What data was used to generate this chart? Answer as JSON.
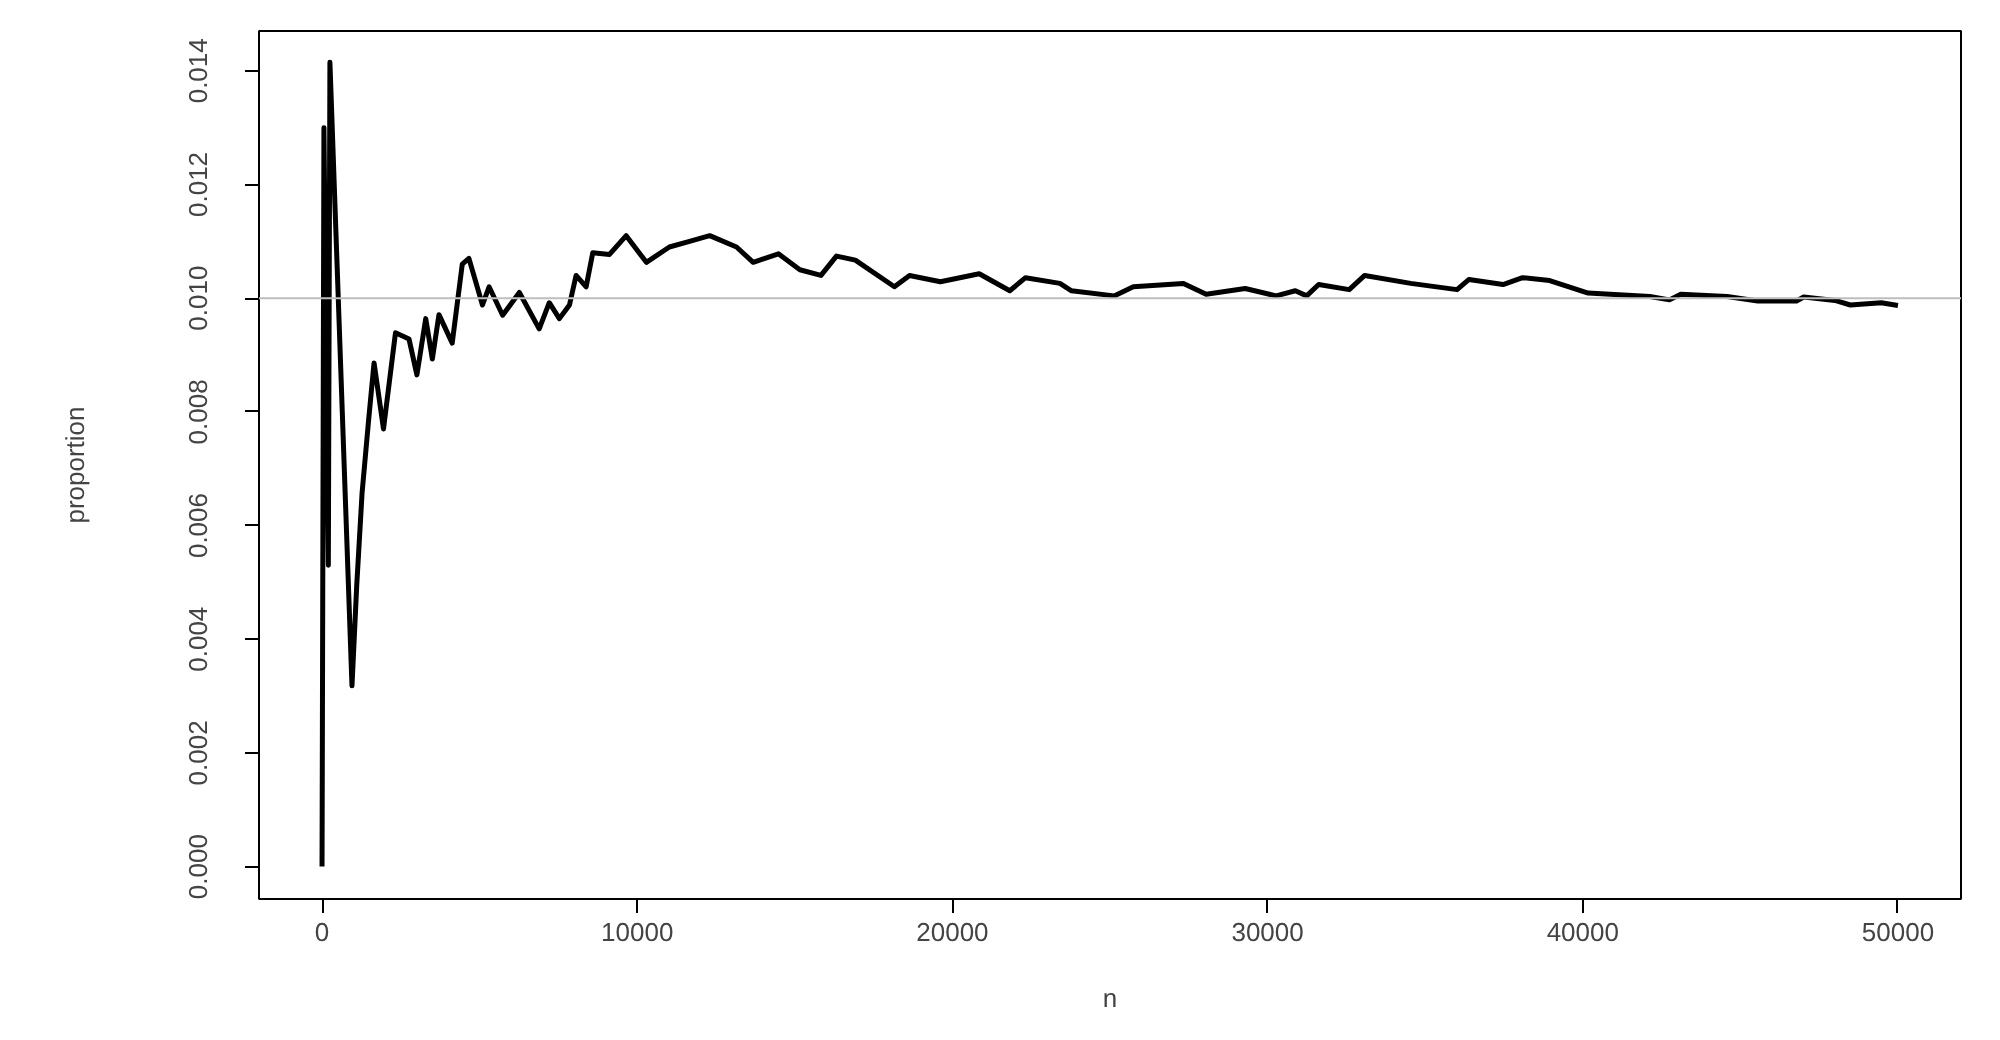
{
  "chart_data": {
    "type": "line",
    "xlabel": "n",
    "ylabel": "proportion",
    "xlim": [
      -2000,
      52000
    ],
    "xticks": [
      0,
      10000,
      20000,
      30000,
      40000,
      50000
    ],
    "ylim": [
      -0.00057,
      0.0147
    ],
    "yticks": [
      {
        "value": 0,
        "label": "0.000"
      },
      {
        "value": 0.002,
        "label": "0.002"
      },
      {
        "value": 0.004,
        "label": "0.004"
      },
      {
        "value": 0.006,
        "label": "0.006"
      },
      {
        "value": 0.008,
        "label": "0.008"
      },
      {
        "value": 0.01,
        "label": "0.010"
      },
      {
        "value": 0.012,
        "label": "0.012"
      },
      {
        "value": 0.014,
        "label": "0.014"
      }
    ],
    "grid": false,
    "line_style": "solid",
    "ref_lines": [
      {
        "axis": "y",
        "value": 0.01,
        "color": "#bebebe"
      }
    ],
    "series": [
      {
        "color": "#000000",
        "x": [
          0,
          60,
          200,
          250,
          950,
          1100,
          1270,
          1480,
          1650,
          1950,
          2330,
          2760,
          3010,
          3290,
          3500,
          3710,
          4130,
          4450,
          4660,
          5090,
          5300,
          5730,
          6260,
          6890,
          7210,
          7530,
          7850,
          8060,
          8380,
          8590,
          9120,
          9650,
          10290,
          11020,
          11660,
          12300,
          13150,
          13680,
          14480,
          15160,
          15830,
          16320,
          16920,
          18160,
          18640,
          19620,
          20850,
          21820,
          22320,
          23410,
          23780,
          25130,
          25740,
          27330,
          28050,
          29290,
          30270,
          30880,
          31240,
          31620,
          32590,
          33080,
          34540,
          36010,
          36390,
          37470,
          38090,
          38950,
          40170,
          42130,
          42750,
          43110,
          44580,
          45550,
          46780,
          47010,
          48000,
          48490,
          49470,
          50000
        ],
        "values": [
          0,
          0.013,
          0.0053,
          0.01415,
          0.00318,
          0.00494,
          0.00657,
          0.00787,
          0.00886,
          0.0077,
          0.00939,
          0.00928,
          0.00865,
          0.00964,
          0.00893,
          0.00971,
          0.00921,
          0.0106,
          0.0107,
          0.00988,
          0.0102,
          0.0097,
          0.0101,
          0.00946,
          0.00992,
          0.00964,
          0.00988,
          0.0104,
          0.0102,
          0.0108,
          0.01077,
          0.0111,
          0.01063,
          0.0109,
          0.011,
          0.0111,
          0.0109,
          0.01063,
          0.01078,
          0.0105,
          0.0104,
          0.01074,
          0.01067,
          0.0102,
          0.0104,
          0.01029,
          0.01043,
          0.01013,
          0.01036,
          0.01026,
          0.01013,
          0.01004,
          0.0102,
          0.01026,
          0.01007,
          0.01017,
          0.01004,
          0.01013,
          0.01004,
          0.01024,
          0.01015,
          0.0104,
          0.01026,
          0.01015,
          0.01033,
          0.01024,
          0.01036,
          0.01031,
          0.01009,
          0.01003,
          0.00997,
          0.01007,
          0.01003,
          0.00995,
          0.00995,
          0.01002,
          0.00996,
          0.00988,
          0.00992,
          0.00987
        ]
      }
    ]
  }
}
